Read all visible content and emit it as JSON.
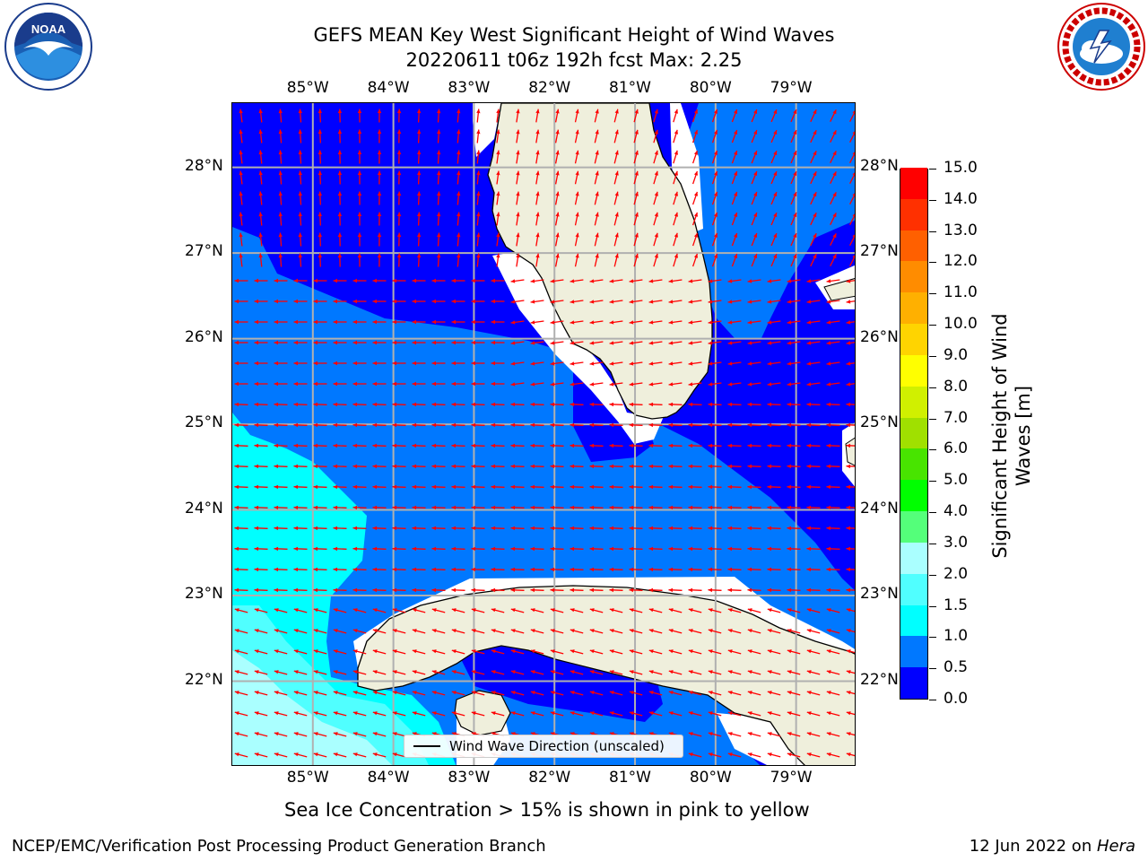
{
  "header": {
    "title_line1": "GEFS MEAN Key West Significant Height of Wind Waves",
    "title_line2": "20220611 t06z 192h fcst   Max: 2.25"
  },
  "logos": {
    "left": "noara-logo",
    "right": "nws-logo"
  },
  "map": {
    "lon_labels": [
      "85°W",
      "84°W",
      "83°W",
      "82°W",
      "81°W",
      "80°W",
      "79°W"
    ],
    "lat_labels": [
      "28°N",
      "27°N",
      "26°N",
      "25°N",
      "24°N",
      "23°N",
      "22°N"
    ],
    "lon_range": [
      -86.0,
      -78.25
    ],
    "lat_range": [
      21.0,
      28.75
    ],
    "land_color": "#efefdc",
    "arrow_color": "#ff0000",
    "legend_label": "Wind Wave Direction (unscaled)"
  },
  "colorbar": {
    "title": "Significant Height of Wind Waves [m]",
    "ticks": [
      "15.0",
      "14.0",
      "13.0",
      "12.0",
      "11.0",
      "10.0",
      "9.0",
      "8.0",
      "7.0",
      "6.0",
      "5.0",
      "4.0",
      "3.0",
      "2.0",
      "1.5",
      "1.0",
      "0.5",
      "0.0"
    ],
    "colors_bottom_to_top": [
      "#0000ff",
      "#0078ff",
      "#00ffff",
      "#50ffff",
      "#aaffff",
      "#54ff7a",
      "#00ff00",
      "#48e400",
      "#a0e000",
      "#d0f000",
      "#ffff00",
      "#ffd400",
      "#ffb000",
      "#ff8c00",
      "#ff6000",
      "#ff3000",
      "#ff0000"
    ]
  },
  "footer": {
    "sea_ice_note": "Sea Ice Concentration > 15% is shown in pink to yellow",
    "branch": "NCEP/EMC/Verification Post Processing Product Generation Branch",
    "date": "12 Jun 2022 on ",
    "host": "Hera"
  }
}
